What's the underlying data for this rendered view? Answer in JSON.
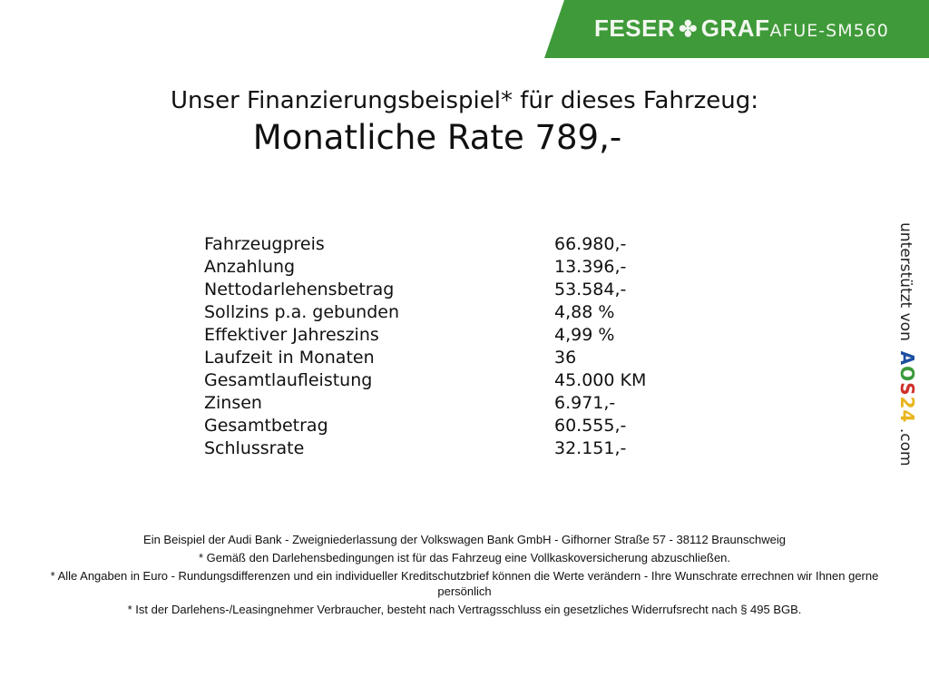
{
  "header": {
    "brand_left": "FESER",
    "brand_right": "GRAF",
    "brand_icon": "clover-icon",
    "vehicle_code": "AFUE-SM560",
    "brand_color": "#3f9a3a"
  },
  "title": {
    "line1": "Unser Finanzierungsbeispiel* für dieses Fahrzeug:",
    "line2": "Monatliche Rate 789,-"
  },
  "rows": [
    {
      "label": "Fahrzeugpreis",
      "value": "66.980,-"
    },
    {
      "label": "Anzahlung",
      "value": "13.396,-"
    },
    {
      "label": "Nettodarlehensbetrag",
      "value": "53.584,-"
    },
    {
      "label": "Sollzins p.a. gebunden",
      "value": "4,88 %"
    },
    {
      "label": "Effektiver Jahreszins",
      "value": "4,99 %"
    },
    {
      "label": "Laufzeit in Monaten",
      "value": "36"
    },
    {
      "label": "Gesamtlaufleistung",
      "value": "45.000 KM"
    },
    {
      "label": "Zinsen",
      "value": "6.971,-"
    },
    {
      "label": "Gesamtbetrag",
      "value": "60.555,-"
    },
    {
      "label": "Schlussrate",
      "value": "32.151,-"
    }
  ],
  "side": {
    "prefix": "unterstützt von",
    "logo_a": "A",
    "logo_o": "O",
    "logo_s": "S",
    "logo_24": "24",
    "suffix": ".com"
  },
  "footer": [
    "Ein Beispiel der Audi Bank - Zweigniederlassung der Volkswagen Bank GmbH - Gifhorner Straße 57 - 38112 Braunschweig",
    "* Gemäß den Darlehensbedingungen ist für das Fahrzeug eine Vollkaskoversicherung abzuschließen.",
    "* Alle Angaben in Euro - Rundungsdifferenzen und ein individueller Kreditschutzbrief können die Werte verändern - Ihre Wunschrate errechnen wir Ihnen gerne persönlich",
    "* Ist der Darlehens-/Leasingnehmer Verbraucher, besteht nach Vertragsschluss ein gesetzliches Widerrufsrecht nach § 495 BGB."
  ]
}
